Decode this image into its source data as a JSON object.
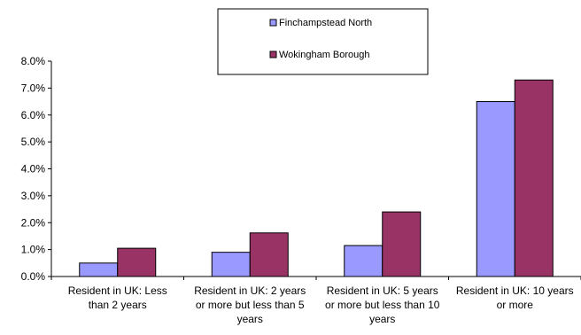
{
  "chart_data": {
    "type": "bar",
    "categories": [
      [
        "Resident in UK: Less",
        "than 2 years"
      ],
      [
        "Resident in UK: 2 years",
        "or more but less than 5",
        "years"
      ],
      [
        "Resident in UK: 5 years",
        "or more but less than 10",
        "years"
      ],
      [
        "Resident in UK: 10 years",
        "or more"
      ]
    ],
    "series": [
      {
        "name": "Finchampstead North",
        "color": "#9999ff",
        "values": [
          0.5,
          0.9,
          1.15,
          6.5
        ]
      },
      {
        "name": "Wokingham Borough",
        "color": "#993366",
        "values": [
          1.05,
          1.62,
          2.4,
          7.3
        ]
      }
    ],
    "yticks": [
      "0.0%",
      "1.0%",
      "2.0%",
      "3.0%",
      "4.0%",
      "5.0%",
      "6.0%",
      "7.0%",
      "8.0%"
    ],
    "ylim": [
      0,
      8
    ],
    "legend_position": "top-center",
    "grid": false
  }
}
